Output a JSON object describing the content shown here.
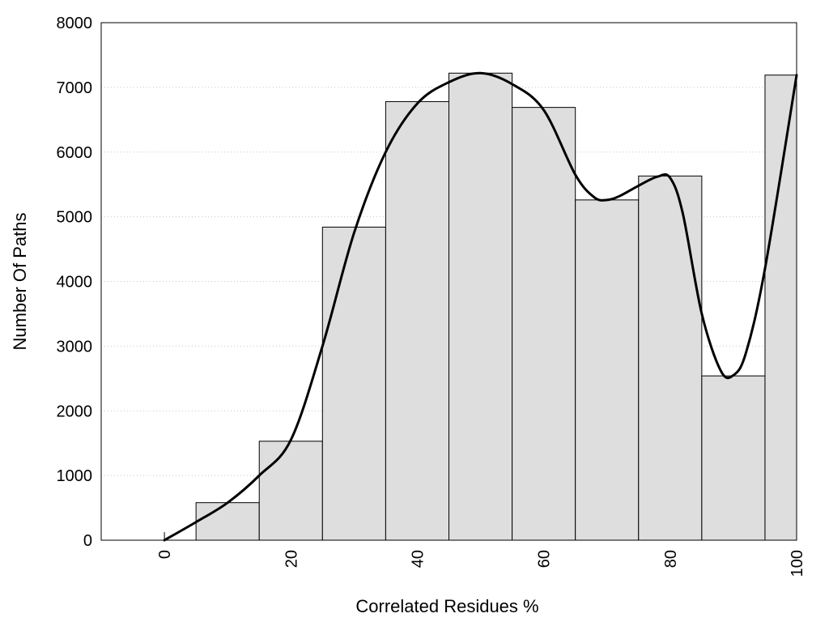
{
  "chart_data": {
    "type": "bar",
    "title": "",
    "xlabel": "Correlated Residues %",
    "ylabel": "Number Of Paths",
    "xlim": [
      -10,
      100
    ],
    "ylim": [
      0,
      8000
    ],
    "grid": true,
    "x_ticks": [
      "0",
      "20",
      "40",
      "60",
      "80",
      "100"
    ],
    "x_tick_values": [
      0,
      20,
      40,
      60,
      80,
      100
    ],
    "y_ticks": [
      "0",
      "1000",
      "2000",
      "3000",
      "4000",
      "5000",
      "6000",
      "7000",
      "8000"
    ],
    "y_tick_values": [
      0,
      1000,
      2000,
      3000,
      4000,
      5000,
      6000,
      7000,
      8000
    ],
    "bins": [
      {
        "start": 5,
        "end": 15,
        "value": 580
      },
      {
        "start": 15,
        "end": 25,
        "value": 1530
      },
      {
        "start": 25,
        "end": 35,
        "value": 4840
      },
      {
        "start": 35,
        "end": 45,
        "value": 6780
      },
      {
        "start": 45,
        "end": 55,
        "value": 7220
      },
      {
        "start": 55,
        "end": 65,
        "value": 6690
      },
      {
        "start": 65,
        "end": 75,
        "value": 5260
      },
      {
        "start": 75,
        "end": 85,
        "value": 5630
      },
      {
        "start": 85,
        "end": 95,
        "value": 2540
      },
      {
        "start": 95,
        "end": 100,
        "value": 7190
      }
    ],
    "curve": {
      "type": "line",
      "x": [
        0,
        5,
        10,
        15,
        20,
        25,
        30,
        35,
        40,
        45,
        50,
        55,
        60,
        65,
        68,
        70,
        72,
        75,
        78,
        80,
        82,
        85,
        88,
        90,
        92,
        95,
        100
      ],
      "y": [
        0,
        280,
        580,
        1000,
        1550,
        3000,
        4750,
        6000,
        6750,
        7080,
        7220,
        7050,
        6650,
        5650,
        5300,
        5260,
        5320,
        5480,
        5620,
        5600,
        5050,
        3500,
        2620,
        2550,
        2900,
        4200,
        7190
      ]
    }
  }
}
